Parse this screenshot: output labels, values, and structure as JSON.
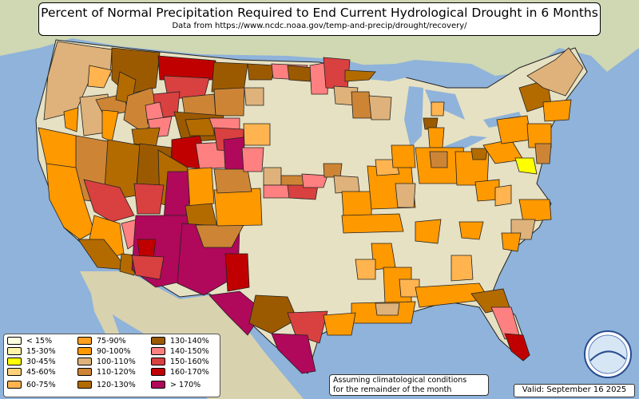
{
  "title": "Percent of Normal Precipitation Required to End Current Hydrological Drought in 6 Months",
  "subtitle": "Data from https://www.ncdc.noaa.gov/temp-and-precip/drought/recovery/",
  "legend": [
    {
      "label": "< 15%",
      "color": "#ffffe0"
    },
    {
      "label": "15-30%",
      "color": "#fff5a8"
    },
    {
      "label": "30-45%",
      "color": "#ffff00"
    },
    {
      "label": "45-60%",
      "color": "#ffd27a"
    },
    {
      "label": "60-75%",
      "color": "#ffb450"
    },
    {
      "label": "75-90%",
      "color": "#ffa020"
    },
    {
      "label": "90-100%",
      "color": "#ff9900"
    },
    {
      "label": "100-110%",
      "color": "#deb27a"
    },
    {
      "label": "110-120%",
      "color": "#cd8535"
    },
    {
      "label": "120-130%",
      "color": "#b36b00"
    },
    {
      "label": "130-140%",
      "color": "#9c5a00"
    },
    {
      "label": "140-150%",
      "color": "#ff8080"
    },
    {
      "label": "150-160%",
      "color": "#d94040"
    },
    {
      "label": "160-170%",
      "color": "#c00000"
    },
    {
      "label": "> 170%",
      "color": "#b0085a"
    }
  ],
  "note_line1": "Assuming climatological conditions",
  "note_line2": "for the remainder of the month",
  "valid": "Valid: September 16 2025",
  "logo_text": "NEXLAB",
  "colors": {
    "ocean": "#8fb3da",
    "land": "#e7e1c3",
    "lakes": "#7fa7d6"
  }
}
